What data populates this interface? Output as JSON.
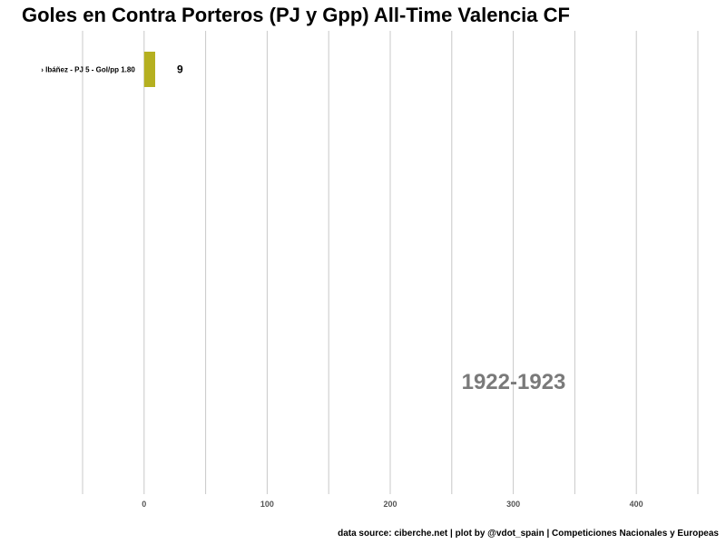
{
  "title": "Goles en Contra Porteros (PJ y Gpp) All-Time Valencia CF",
  "caption": "data source: ciberche.net | plot by @vdot_spain | Competiciones Nacionales y Europeas",
  "chart_data": {
    "type": "bar",
    "orientation": "horizontal",
    "title": "Goles en Contra Porteros (PJ y Gpp) All-Time Valencia CF",
    "period_label": "1922-1923",
    "categories": [
      "› Ibáñez - PJ 5 - Gol/pp 1.80"
    ],
    "values": [
      9
    ],
    "value_labels": [
      "9"
    ],
    "bar_colors": [
      "#b5b020"
    ],
    "xlim": [
      -50,
      450
    ],
    "xticks": [
      0,
      100,
      200,
      300,
      400
    ],
    "xtick_labels": [
      "0",
      "100",
      "200",
      "300",
      "400"
    ],
    "grid": "vertical",
    "legend": "none"
  }
}
